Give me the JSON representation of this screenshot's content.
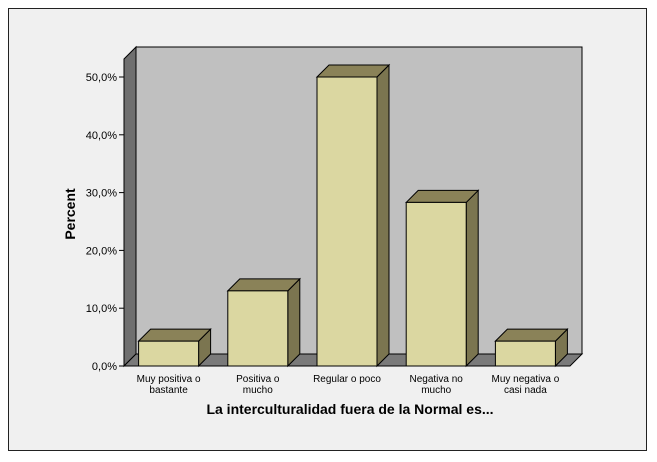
{
  "chart_data": {
    "type": "bar",
    "title": "",
    "xlabel": "La interculturalidad fuera de la Normal es...",
    "ylabel": "Percent",
    "categories": [
      [
        "Muy positiva o",
        "bastante"
      ],
      [
        "Positiva o",
        "mucho"
      ],
      [
        "Regular o poco"
      ],
      [
        "Negativa no",
        "mucho"
      ],
      [
        "Muy negativa o",
        "casi nada"
      ]
    ],
    "values": [
      4.3,
      13.0,
      50.0,
      28.3,
      4.3
    ],
    "ylim": [
      0,
      50
    ],
    "yticks": [
      0,
      10,
      20,
      30,
      40,
      50
    ],
    "ytick_labels": [
      "0,0%",
      "10,0%",
      "20,0%",
      "30,0%",
      "40,0%",
      "50,0%"
    ],
    "grid": false,
    "legend": "none",
    "style": "3d-bar"
  },
  "colors": {
    "bar_front": "#dbd7a1",
    "bar_top": "#8a8258",
    "bar_side": "#7b7550",
    "plot_back": "#c0c0c0",
    "plot_floor": "#7a7a7a",
    "plot_wall": "#6f6f6f",
    "frame_bg": "#f0f0f0"
  }
}
